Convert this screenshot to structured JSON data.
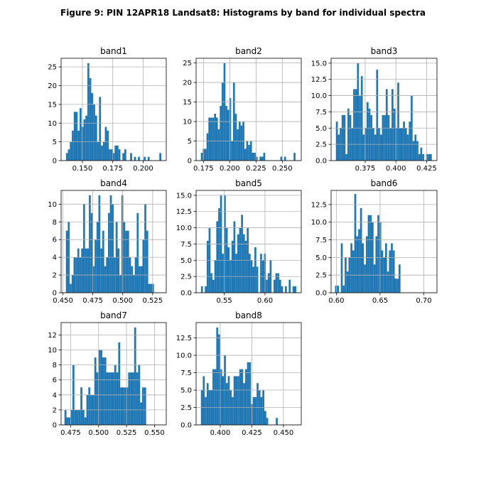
{
  "figure": {
    "title": "Figure 9: PIN 12APR18  Landsat8: Histograms by band for individual spectra"
  },
  "style": {
    "bar_color": "#1f77b4",
    "grid_color": "#b0b0b0"
  },
  "chart_data": [
    {
      "type": "bar",
      "title": "band1",
      "grid": true,
      "xlim": [
        0.1325,
        0.219
      ],
      "ylim": [
        0,
        27.3
      ],
      "xticks": [
        0.15,
        0.175,
        0.2
      ],
      "xtick_labels": [
        "0.150",
        "0.175",
        "0.200"
      ],
      "yticks": [
        0,
        5,
        10,
        15,
        20,
        25
      ],
      "ytick_labels": [
        "0",
        "5",
        "10",
        "15",
        "20",
        "25"
      ],
      "bin_start": 0.1365,
      "bin_width": 0.0016,
      "counts": [
        2,
        3,
        5,
        8,
        13,
        13,
        8,
        14,
        9,
        11,
        12,
        26,
        22,
        18,
        15,
        12,
        5,
        17,
        4,
        5,
        9,
        8,
        3,
        3,
        2,
        4,
        4,
        3,
        0,
        2,
        3,
        0,
        0,
        2,
        0,
        1,
        0,
        1,
        0,
        0,
        1,
        0,
        1,
        0,
        0,
        0,
        0,
        0,
        2
      ]
    },
    {
      "type": "bar",
      "title": "band2",
      "grid": true,
      "xlim": [
        0.168,
        0.268
      ],
      "ylim": [
        0,
        26.2
      ],
      "xticks": [
        0.175,
        0.2,
        0.225,
        0.25
      ],
      "xtick_labels": [
        "0.175",
        "0.200",
        "0.225",
        "0.250"
      ],
      "yticks": [
        0,
        5,
        10,
        15,
        20,
        25
      ],
      "ytick_labels": [
        "0",
        "5",
        "10",
        "15",
        "20",
        "25"
      ],
      "bin_start": 0.1725,
      "bin_width": 0.0018,
      "counts": [
        2,
        3,
        3,
        7,
        11,
        11,
        11,
        12,
        11,
        8,
        14,
        20,
        25,
        14,
        13,
        16,
        5,
        20,
        12,
        8,
        10,
        9,
        10,
        3,
        5,
        4,
        5,
        2,
        2,
        1,
        0,
        1,
        1,
        2,
        0,
        0,
        0,
        0,
        0,
        0,
        0,
        0,
        1,
        0,
        1,
        0,
        0,
        0,
        0,
        2
      ]
    },
    {
      "type": "bar",
      "title": "band3",
      "grid": true,
      "xlim": [
        0.3473,
        0.4334
      ],
      "ylim": [
        0,
        15.75
      ],
      "xticks": [
        0.375,
        0.4,
        0.425
      ],
      "xtick_labels": [
        "0.375",
        "0.400",
        "0.425"
      ],
      "yticks": [
        0,
        2.5,
        5,
        7.5,
        10,
        12.5,
        15
      ],
      "ytick_labels": [
        "0.0",
        "2.5",
        "5.0",
        "7.5",
        "10.0",
        "12.5",
        "15.0"
      ],
      "bin_start": 0.3512,
      "bin_width": 0.00156,
      "counts": [
        6,
        4,
        5,
        7,
        7,
        1,
        8,
        7,
        5,
        11,
        11,
        15,
        10,
        13,
        4,
        5,
        9,
        8,
        7,
        5,
        4,
        14,
        5,
        4,
        7,
        7,
        11,
        7,
        5,
        11,
        8,
        5,
        12,
        5,
        5,
        6,
        5,
        4,
        6,
        10,
        3,
        4,
        3,
        1,
        2,
        1,
        0,
        1,
        1,
        1
      ]
    },
    {
      "type": "bar",
      "title": "band4",
      "grid": true,
      "xlim": [
        0.4485,
        0.5364
      ],
      "ylim": [
        0,
        11.55
      ],
      "xticks": [
        0.45,
        0.475,
        0.5,
        0.525
      ],
      "xtick_labels": [
        "0.450",
        "0.475",
        "0.500",
        "0.525"
      ],
      "yticks": [
        0,
        2,
        4,
        6,
        8,
        10
      ],
      "ytick_labels": [
        "0",
        "2",
        "4",
        "6",
        "8",
        "10"
      ],
      "bin_start": 0.4525,
      "bin_width": 0.0016,
      "counts": [
        7,
        8,
        1,
        2,
        4,
        4,
        5,
        4,
        5,
        10,
        5,
        5,
        11,
        9,
        3,
        6,
        8,
        11,
        5,
        7,
        3,
        4,
        9,
        11,
        10,
        4,
        8,
        5,
        2,
        11,
        8,
        7,
        7,
        4,
        3,
        2,
        4,
        9,
        3,
        3,
        6,
        10,
        7,
        1,
        1,
        1
      ]
    },
    {
      "type": "bar",
      "title": "band5",
      "grid": true,
      "xlim": [
        0.5155,
        0.6445
      ],
      "ylim": [
        0,
        15.75
      ],
      "xticks": [
        0.55,
        0.6
      ],
      "xtick_labels": [
        "0.55",
        "0.60"
      ],
      "yticks": [
        0,
        2.5,
        5,
        7.5,
        10,
        12.5,
        15
      ],
      "ytick_labels": [
        "0.0",
        "2.5",
        "5.0",
        "7.5",
        "10.0",
        "12.5",
        "15.0"
      ],
      "bin_start": 0.5215,
      "bin_width": 0.00234,
      "counts": [
        1,
        0,
        1,
        8,
        10,
        3,
        2,
        5,
        11,
        13,
        15,
        6,
        15,
        10,
        7,
        5,
        8,
        11,
        6,
        9,
        10,
        12,
        9,
        8,
        10,
        6,
        5,
        4,
        7,
        4,
        0,
        6,
        5,
        6,
        2,
        3,
        5,
        0,
        2,
        3,
        3,
        2,
        1,
        0,
        1,
        0,
        2,
        0,
        1,
        1
      ]
    },
    {
      "type": "bar",
      "title": "band6",
      "grid": true,
      "xlim": [
        0.594,
        0.715
      ],
      "ylim": [
        0,
        14.5
      ],
      "xticks": [
        0.6,
        0.65,
        0.7
      ],
      "xtick_labels": [
        "0.60",
        "0.65",
        "0.70"
      ],
      "yticks": [
        0,
        2.5,
        5,
        7.5,
        10,
        12.5
      ],
      "ytick_labels": [
        "0.0",
        "2.5",
        "5.0",
        "7.5",
        "10.0",
        "12.5"
      ],
      "bin_start": 0.5985,
      "bin_width": 0.0022,
      "counts": [
        1,
        1,
        0,
        7,
        1,
        5,
        3,
        5,
        7,
        6,
        14,
        8,
        9,
        12,
        7,
        4,
        8,
        11,
        11,
        10,
        4,
        8,
        11,
        10,
        6,
        5,
        7,
        3,
        6,
        7,
        6,
        2,
        2,
        4
      ]
    },
    {
      "type": "bar",
      "title": "band7",
      "grid": true,
      "xlim": [
        0.4665,
        0.5605
      ],
      "ylim": [
        0,
        13.65
      ],
      "xticks": [
        0.475,
        0.5,
        0.525,
        0.55
      ],
      "xtick_labels": [
        "0.475",
        "0.500",
        "0.525",
        "0.550"
      ],
      "yticks": [
        0,
        2,
        4,
        6,
        8,
        10,
        12
      ],
      "ytick_labels": [
        "0",
        "2",
        "4",
        "6",
        "8",
        "10",
        "12"
      ],
      "bin_start": 0.4695,
      "bin_width": 0.00178,
      "counts": [
        2,
        1,
        1,
        2,
        8,
        2,
        2,
        2,
        5,
        2,
        1,
        4,
        5,
        4,
        4,
        9,
        7,
        10,
        10,
        9,
        9,
        7,
        7,
        7,
        7,
        8,
        7,
        11,
        5,
        5,
        5,
        5,
        7,
        7,
        7,
        13,
        7,
        8,
        3,
        5,
        5
      ]
    },
    {
      "type": "bar",
      "title": "band8",
      "grid": true,
      "xlim": [
        0.3809,
        0.4641
      ],
      "ylim": [
        0,
        14.7
      ],
      "xticks": [
        0.4,
        0.425,
        0.45
      ],
      "xtick_labels": [
        "0.400",
        "0.425",
        "0.450"
      ],
      "yticks": [
        0,
        2.5,
        5,
        7.5,
        10,
        12.5
      ],
      "ytick_labels": [
        "0.0",
        "2.5",
        "5.0",
        "7.5",
        "10.0",
        "12.5"
      ],
      "bin_start": 0.3847,
      "bin_width": 0.00152,
      "counts": [
        5,
        7,
        4,
        6,
        5,
        5,
        8,
        8,
        14,
        13,
        8,
        7,
        10,
        6,
        7,
        5,
        4,
        7,
        7,
        7,
        8,
        8,
        6,
        8,
        9,
        9,
        3,
        4,
        4,
        6,
        5,
        4,
        5,
        2,
        1,
        0,
        0,
        0,
        0,
        1
      ]
    }
  ]
}
